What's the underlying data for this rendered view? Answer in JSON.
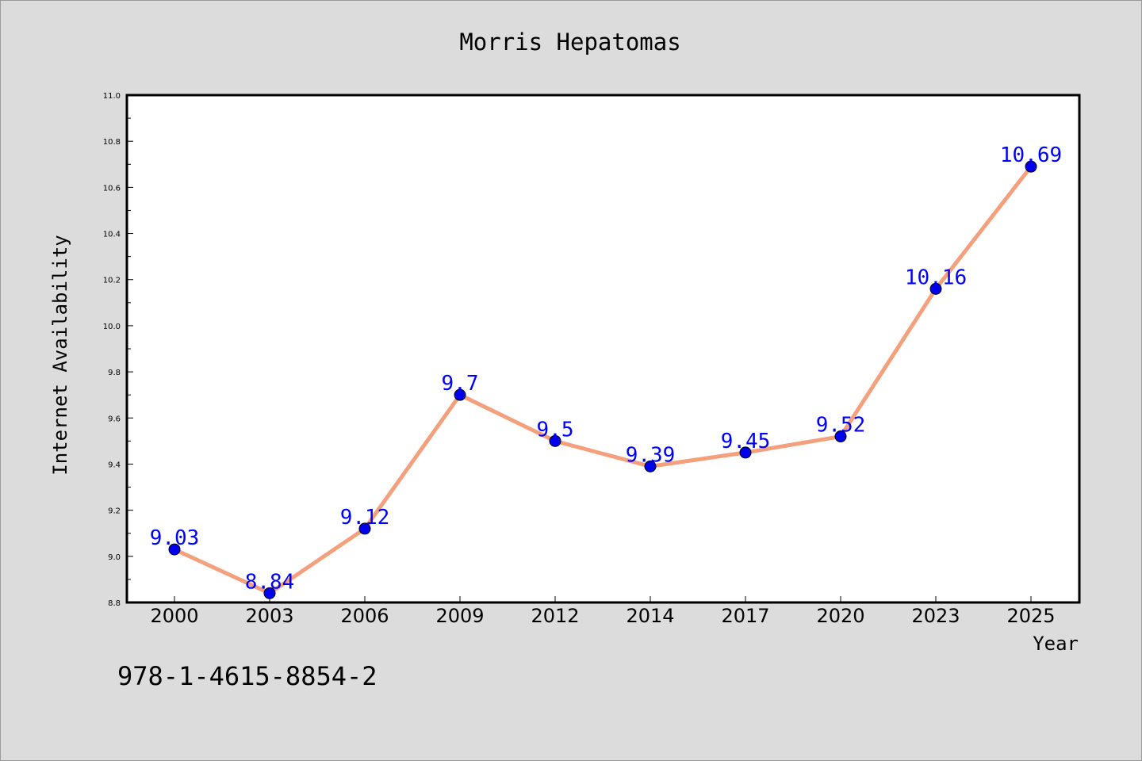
{
  "chart_data": {
    "type": "line",
    "title": "Morris Hepatomas",
    "xlabel": "Year",
    "ylabel": "Internet Availability",
    "categories": [
      "2000",
      "2003",
      "2006",
      "2009",
      "2012",
      "2014",
      "2017",
      "2020",
      "2023",
      "2025"
    ],
    "series": [
      {
        "values": [
          9.03,
          8.84,
          9.12,
          9.7,
          9.5,
          9.39,
          9.45,
          9.52,
          10.16,
          10.69
        ],
        "value_labels": [
          "9.03",
          "8.84",
          "9.12",
          "9.7",
          "9.5",
          "9.39",
          "9.45",
          "9.52",
          "10.16",
          "10.69"
        ]
      }
    ],
    "ylim": [
      8.8,
      11.0
    ],
    "yticks": [
      "8.8",
      "9.0",
      "9.2",
      "9.4",
      "9.6",
      "9.8",
      "10.0",
      "10.2",
      "10.4",
      "10.6",
      "10.8",
      "11.0"
    ],
    "grid": false,
    "legend": "none",
    "colors": {
      "line": "#f4a07c",
      "marker": "#0000ee",
      "data_label": "#0000ff",
      "background": "#dcdcdc",
      "plot_background": "#ffffff"
    }
  },
  "footnote": "978-1-4615-8854-2"
}
